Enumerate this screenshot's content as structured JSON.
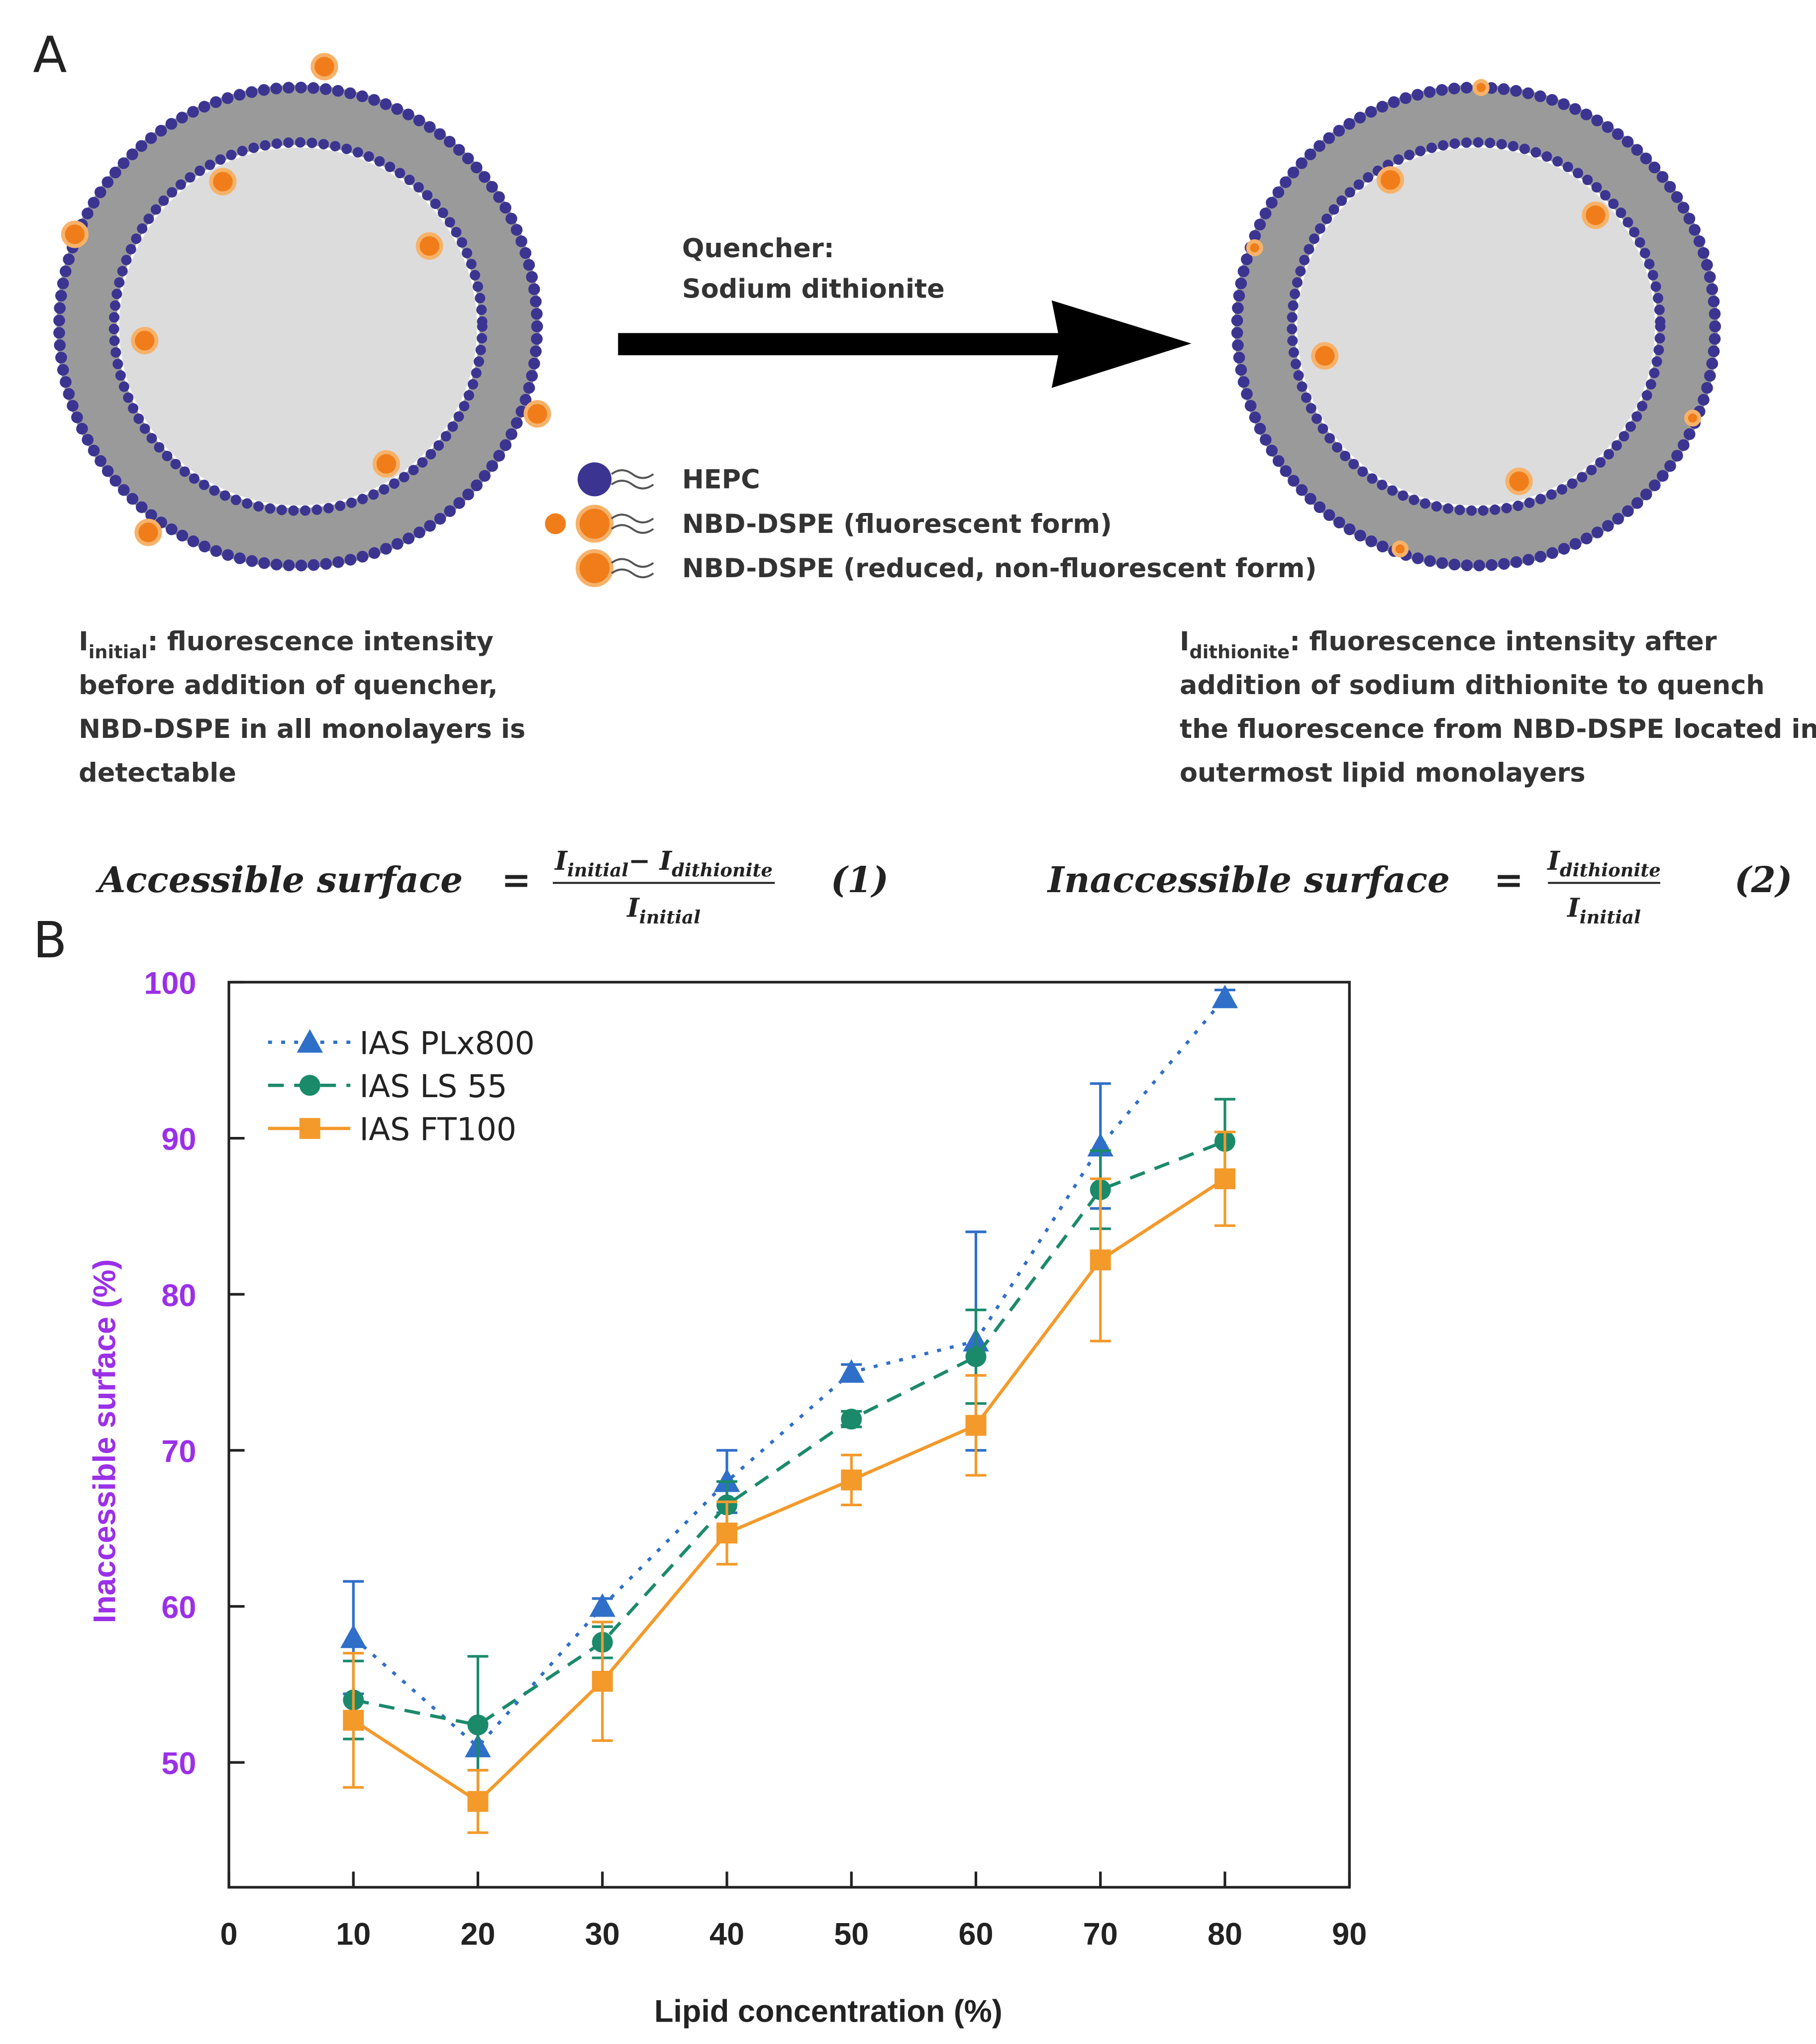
{
  "panel_a": {
    "label": "A",
    "quencher": [
      "Quencher:",
      "Sodium dithionite"
    ],
    "legend": [
      "HEPC",
      "NBD-DSPE (fluorescent form)",
      "NBD-DSPE (reduced, non-fluorescent form)"
    ],
    "left_caption": {
      "symbol": "I",
      "subscript": "initial",
      "lines": [
        ": fluorescence intensity",
        "before addition of quencher,",
        "NBD-DSPE in all monolayers is",
        "detectable"
      ]
    },
    "right_caption": {
      "symbol": "I",
      "subscript": "dithionite",
      "lines": [
        ": fluorescence intensity after",
        "addition of sodium dithionite to quench",
        "the fluorescence from NBD-DSPE located in",
        "outermost lipid monolayers"
      ]
    },
    "equation_1": {
      "name": "Accessible surface",
      "equals": "=",
      "numerator": [
        {
          "symbol": "I",
          "subscript": "initial"
        },
        {
          "symbol": "− I",
          "subscript": "dithionite"
        }
      ],
      "denominator": {
        "symbol": "I",
        "subscript": "initial"
      },
      "number": "(1)"
    },
    "equation_2": {
      "name": "Inaccessible surface",
      "equals": "=",
      "numerator": [
        {
          "symbol": "I",
          "subscript": "dithionite"
        }
      ],
      "denominator": {
        "symbol": "I",
        "subscript": "initial"
      },
      "number": "(2)"
    }
  },
  "chart_data": {
    "type": "line",
    "panel_label": "B",
    "x_label": "Lipid concentration (%)",
    "y_label": "Inaccessible surface (%)",
    "x": [
      10,
      20,
      30,
      40,
      50,
      60,
      70,
      80
    ],
    "xlim": [
      0,
      90
    ],
    "xticks": [
      0,
      10,
      20,
      30,
      40,
      50,
      60,
      70,
      80,
      90
    ],
    "ylim": [
      42,
      100
    ],
    "yticks": [
      50,
      60,
      70,
      80,
      90,
      100
    ],
    "ytick_color": "#9b30e8",
    "legend_position": "upper left",
    "series": [
      {
        "name": "IAS PLx800",
        "color": "#2f6fc8",
        "marker": "triangle",
        "linestyle": "dotted",
        "values": [
          58,
          51,
          60,
          68,
          75,
          77,
          89.5,
          99
        ],
        "errors": [
          3.6,
          1.5,
          0.5,
          2,
          0.5,
          7,
          4,
          0.5
        ]
      },
      {
        "name": "IAS LS 55",
        "color": "#1b8a6b",
        "marker": "circle",
        "linestyle": "dashed",
        "values": [
          54,
          52.4,
          57.7,
          66.5,
          72,
          76,
          86.7,
          89.8
        ],
        "errors": [
          2.5,
          4.4,
          1,
          1.5,
          0.5,
          3,
          2.5,
          2.7
        ]
      },
      {
        "name": "IAS FT100",
        "color": "#f39a2b",
        "marker": "square",
        "linestyle": "solid",
        "values": [
          52.7,
          47.5,
          55.2,
          64.7,
          68.1,
          71.6,
          82.2,
          87.4
        ],
        "errors": [
          4.3,
          2,
          3.8,
          2,
          1.6,
          3.2,
          5.2,
          3
        ]
      }
    ]
  }
}
